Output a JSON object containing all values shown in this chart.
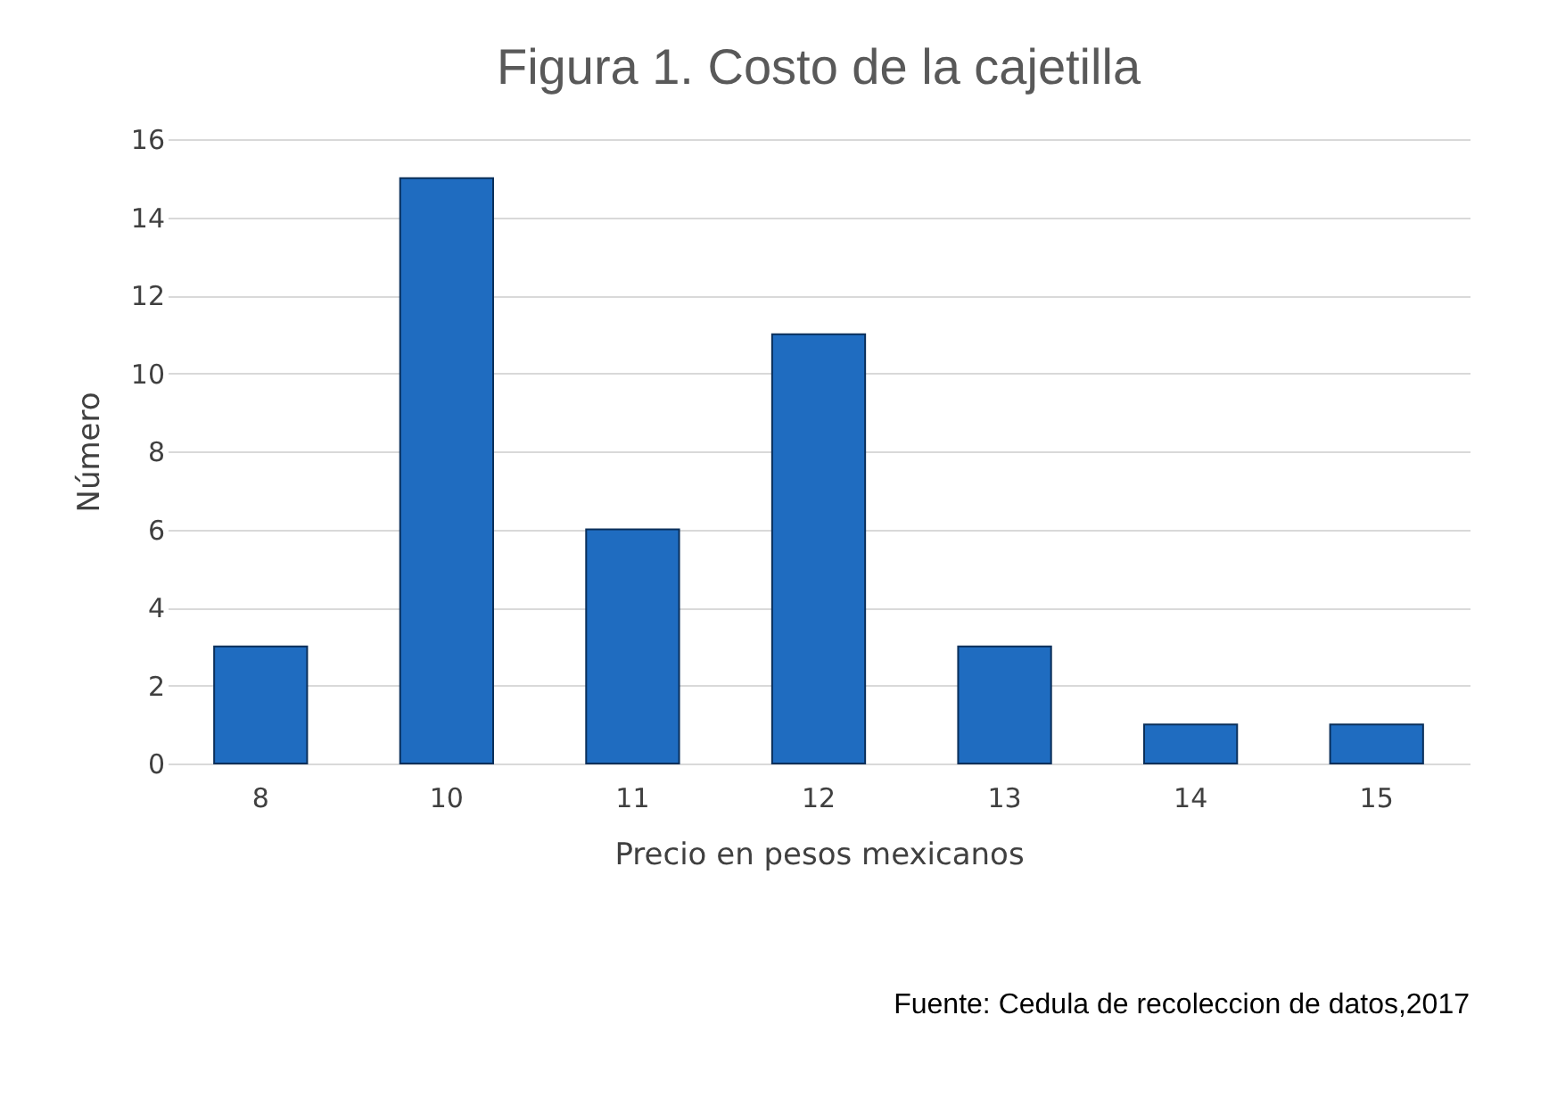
{
  "chart_data": {
    "type": "bar",
    "title": "Figura 1. Costo de la cajetilla",
    "xlabel": "Precio en pesos mexicanos",
    "ylabel": "Número",
    "categories": [
      "8",
      "10",
      "11",
      "12",
      "13",
      "14",
      "15"
    ],
    "values": [
      3,
      15,
      6,
      11,
      3,
      1,
      1
    ],
    "color": "#1f6cc0",
    "ylim": [
      0,
      16
    ],
    "yticks": [
      0,
      2,
      4,
      6,
      8,
      10,
      12,
      14,
      16
    ],
    "grid": "y",
    "annotations": [
      "Fuente: Cedula de recoleccion de datos,2017"
    ]
  }
}
